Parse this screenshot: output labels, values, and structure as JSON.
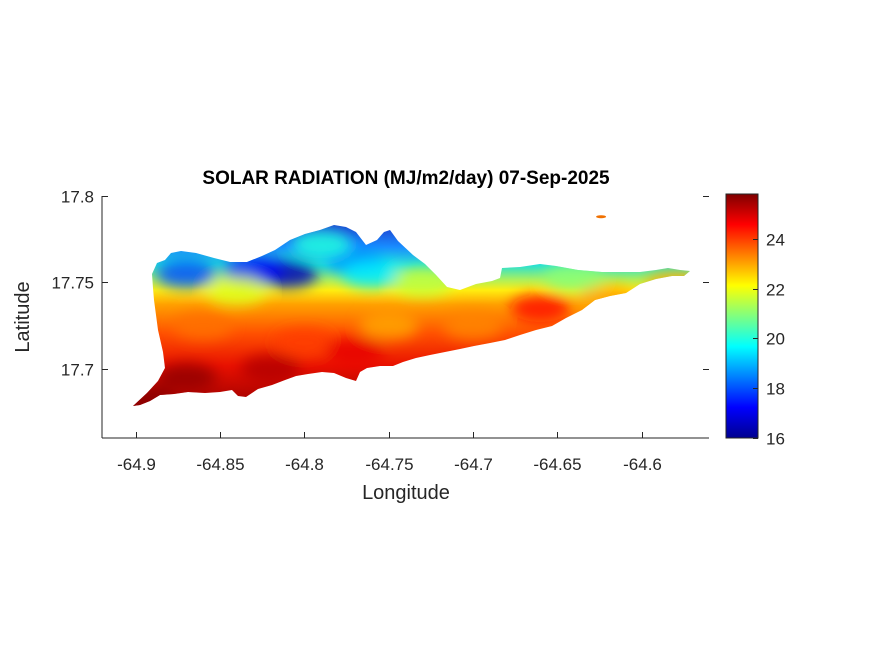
{
  "figure": {
    "title": "SOLAR RADIATION (MJ/m2/day) 07-Sep-2025",
    "xlabel": "Longitude",
    "ylabel": "Latitude"
  },
  "chart_data": {
    "type": "heatmap",
    "title": "SOLAR RADIATION (MJ/m2/day) 07-Sep-2025",
    "xlabel": "Longitude",
    "ylabel": "Latitude",
    "xlim": [
      -64.92,
      -64.56
    ],
    "ylim": [
      17.66,
      17.8
    ],
    "xticks": [
      -64.9,
      -64.85,
      -64.8,
      -64.75,
      -64.7,
      -64.65,
      -64.6
    ],
    "xtick_labels": [
      "-64.9",
      "-64.85",
      "-64.8",
      "-64.75",
      "-64.7",
      "-64.65",
      "-64.6"
    ],
    "yticks": [
      17.7,
      17.75,
      17.8
    ],
    "ytick_labels": [
      "17.7",
      "17.75",
      "17.8"
    ],
    "colormap": "jet",
    "colorbar": {
      "clim": [
        16,
        25.8
      ],
      "ticks": [
        16,
        18,
        20,
        22,
        24
      ],
      "tick_labels": [
        "16",
        "18",
        "20",
        "22",
        "24"
      ]
    },
    "grid": false,
    "field_description": "Solar radiation over the island: low values (about 16-19) in the north-west band near latitude 17.75-17.76, rising to about 24-25.8 along the southern coast",
    "regions": [
      {
        "lon": -64.81,
        "lat": 17.755,
        "value": 16.5
      },
      {
        "lon": -64.83,
        "lat": 17.757,
        "value": 17.2
      },
      {
        "lon": -64.87,
        "lat": 17.755,
        "value": 18.0
      },
      {
        "lon": -64.77,
        "lat": 17.763,
        "value": 18.5
      },
      {
        "lon": -64.79,
        "lat": 17.772,
        "value": 20.0
      },
      {
        "lon": -64.76,
        "lat": 17.755,
        "value": 19.5
      },
      {
        "lon": -64.73,
        "lat": 17.75,
        "value": 21.5
      },
      {
        "lon": -64.84,
        "lat": 17.745,
        "value": 21.8
      },
      {
        "lon": -64.64,
        "lat": 17.753,
        "value": 21.0
      },
      {
        "lon": -64.86,
        "lat": 17.725,
        "value": 23.5
      },
      {
        "lon": -64.8,
        "lat": 17.715,
        "value": 24.0
      },
      {
        "lon": -64.75,
        "lat": 17.725,
        "value": 23.0
      },
      {
        "lon": -64.7,
        "lat": 17.725,
        "value": 23.3
      },
      {
        "lon": -64.66,
        "lat": 17.735,
        "value": 24.5
      },
      {
        "lon": -64.62,
        "lat": 17.74,
        "value": 23.0
      },
      {
        "lon": -64.58,
        "lat": 17.748,
        "value": 23.0
      },
      {
        "lon": -64.87,
        "lat": 17.695,
        "value": 25.6
      },
      {
        "lon": -64.82,
        "lat": 17.7,
        "value": 25.3
      },
      {
        "lon": -64.77,
        "lat": 17.71,
        "value": 24.8
      },
      {
        "lon": -64.895,
        "lat": 17.682,
        "value": 25.7
      },
      {
        "lon": -64.625,
        "lat": 17.788,
        "value": 23.5
      }
    ]
  }
}
